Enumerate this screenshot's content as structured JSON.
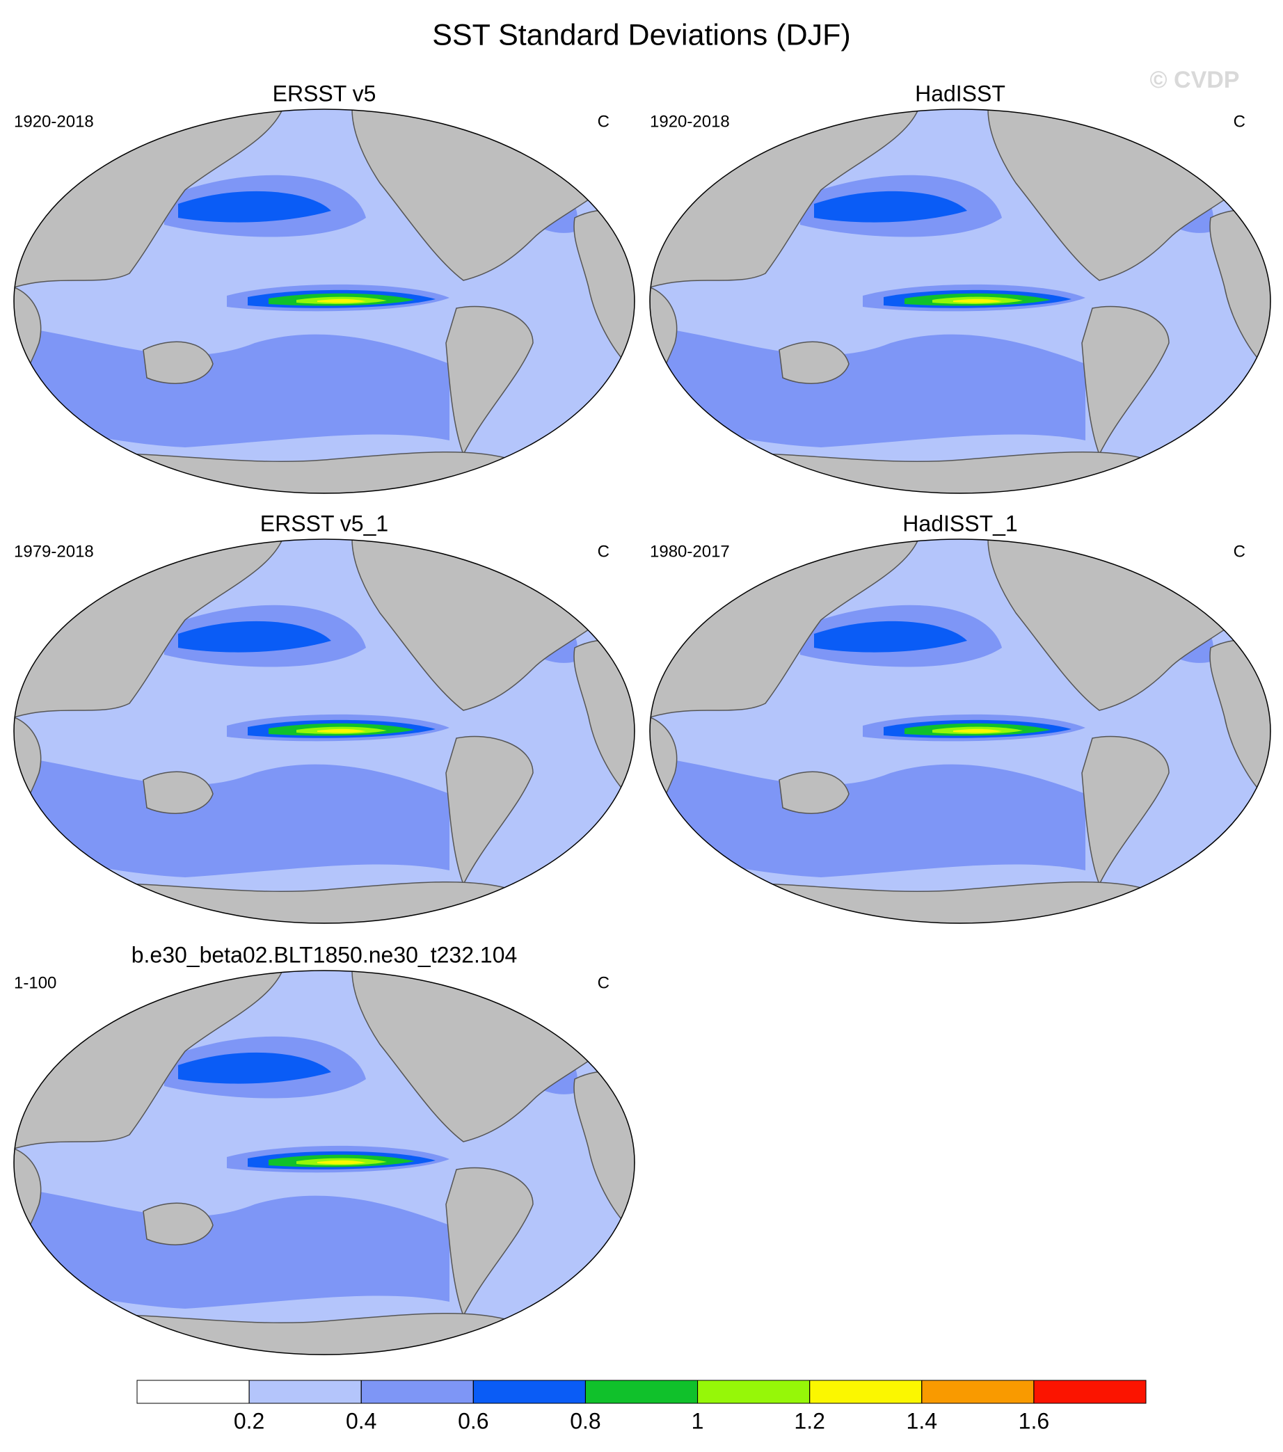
{
  "title": "SST Standard Deviations (DJF)",
  "watermark": "© CVDP",
  "panels": [
    {
      "title": "ERSST v5",
      "period": "1920-2018",
      "units": "C"
    },
    {
      "title": "HadISST",
      "period": "1920-2018",
      "units": "C"
    },
    {
      "title": "ERSST v5_1",
      "period": "1979-2018",
      "units": "C"
    },
    {
      "title": "HadISST_1",
      "period": "1980-2017",
      "units": "C"
    },
    {
      "title": "b.e30_beta02.BLT1850.ne30_t232.104",
      "period": "1-100",
      "units": "C"
    }
  ],
  "colorbar": {
    "colors": [
      "#ffffff",
      "#b4c5fb",
      "#7e96f6",
      "#0a5cf6",
      "#10c12b",
      "#96f708",
      "#fbf700",
      "#f99a00",
      "#fb1400"
    ],
    "lim": [
      0,
      1.8
    ],
    "ticks": [
      0.2,
      0.4,
      0.6,
      0.8,
      1,
      1.2,
      1.4,
      1.6
    ]
  }
}
